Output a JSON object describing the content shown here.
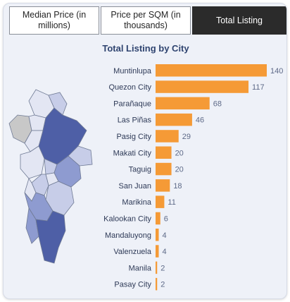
{
  "tabs": [
    {
      "label": "Median Price (in millions)",
      "active": false
    },
    {
      "label": "Price per SQM (in thousands)",
      "active": false
    },
    {
      "label": "Total Listing",
      "active": true
    }
  ],
  "colors": {
    "bar": "#f59a36",
    "map_dark": "#4e5fa6",
    "map_mid": "#8e9bd0",
    "map_light": "#c7cde8",
    "map_pale": "#e3e6f3",
    "map_gray": "#c8c8c8",
    "title": "#2f4470"
  },
  "chart_data": {
    "type": "bar",
    "orientation": "horizontal",
    "title": "Total Listing by City",
    "categories": [
      "Muntinlupa",
      "Quezon City",
      "Parañaque",
      "Las Piñas",
      "Pasig City",
      "Makati City",
      "Taguig",
      "San Juan",
      "Marikina",
      "Kalookan City",
      "Mandaluyong",
      "Valenzuela",
      "Manila",
      "Pasay City"
    ],
    "values": [
      140,
      117,
      68,
      46,
      29,
      20,
      20,
      18,
      11,
      6,
      4,
      4,
      2,
      2
    ],
    "xlim": [
      0,
      140
    ],
    "data_labels": true,
    "grid": false
  }
}
